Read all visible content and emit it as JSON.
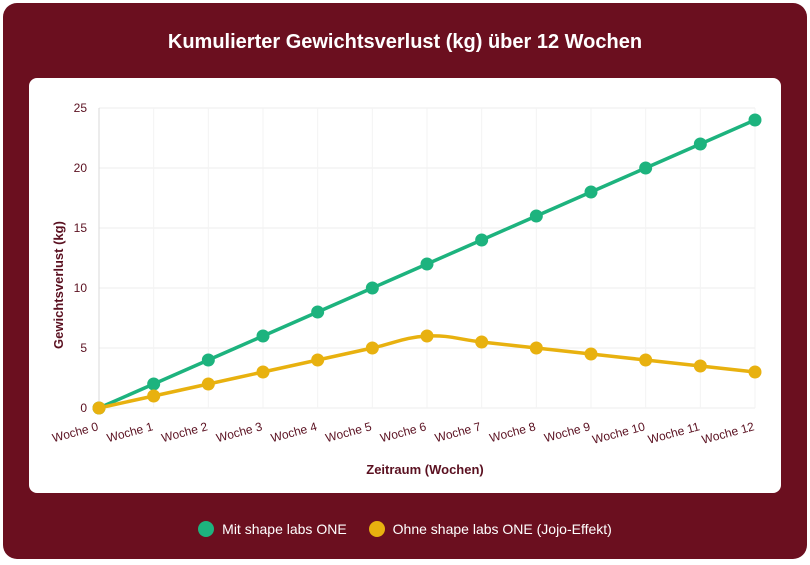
{
  "chart_data": {
    "type": "line",
    "title": "Kumulierter Gewichtsverlust (kg) über 12 Wochen",
    "xlabel": "Zeitraum (Wochen)",
    "ylabel": "Gewichtsverlust (kg)",
    "categories": [
      "Woche 0",
      "Woche 1",
      "Woche 2",
      "Woche 3",
      "Woche 4",
      "Woche 5",
      "Woche 6",
      "Woche 7",
      "Woche 8",
      "Woche 9",
      "Woche 10",
      "Woche 11",
      "Woche 12"
    ],
    "ylim": [
      0,
      25
    ],
    "yticks": [
      0,
      5,
      10,
      15,
      20,
      25
    ],
    "grid": true,
    "legend_position": "bottom",
    "series": [
      {
        "name": "Mit shape labs ONE",
        "color": "#1db37e",
        "values": [
          0,
          2,
          4,
          6,
          8,
          10,
          12,
          14,
          16,
          18,
          20,
          22,
          24
        ]
      },
      {
        "name": "Ohne shape labs ONE (Jojo-Effekt)",
        "color": "#e8b10f",
        "values": [
          0,
          1,
          2,
          3,
          4,
          5,
          6,
          5.5,
          5,
          4.5,
          4,
          3.5,
          3
        ]
      }
    ]
  },
  "colors": {
    "frame": "#6b0f1f",
    "axis_text": "#5a1020"
  }
}
